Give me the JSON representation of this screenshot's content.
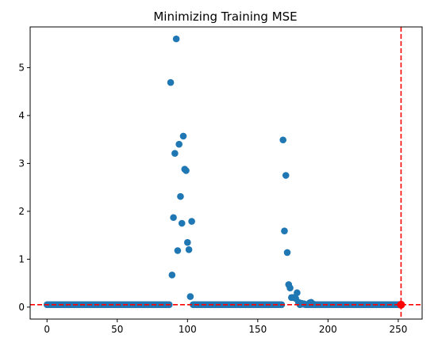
{
  "chart_data": {
    "type": "scatter",
    "title": "Minimizing Training MSE",
    "xlabel": "",
    "ylabel": "",
    "xlim": [
      -12,
      267
    ],
    "ylim": [
      -0.25,
      5.85
    ],
    "x_ticks": [
      0,
      50,
      100,
      150,
      200,
      250
    ],
    "y_ticks": [
      0,
      1,
      2,
      3,
      4,
      5
    ],
    "grid": false,
    "colors": {
      "points": "#1f77b4",
      "reference_lines": "#ff0000",
      "highlight_point": "#ff0000"
    },
    "reference_lines": {
      "horizontal_y": 0.05,
      "vertical_x": 252,
      "style": "dashed"
    },
    "highlight_point": {
      "x": 252,
      "y": 0.05
    },
    "baseline_points": {
      "y": 0.05,
      "x": [
        0,
        1,
        2,
        3,
        4,
        5,
        6,
        7,
        8,
        9,
        10,
        11,
        12,
        13,
        14,
        15,
        16,
        17,
        18,
        19,
        20,
        21,
        22,
        23,
        24,
        25,
        26,
        27,
        28,
        29,
        30,
        31,
        32,
        33,
        34,
        35,
        36,
        37,
        38,
        39,
        40,
        41,
        42,
        43,
        44,
        45,
        46,
        47,
        48,
        49,
        50,
        51,
        52,
        53,
        54,
        55,
        56,
        57,
        58,
        59,
        60,
        61,
        62,
        63,
        64,
        65,
        66,
        67,
        68,
        69,
        70,
        71,
        72,
        73,
        74,
        75,
        76,
        77,
        78,
        79,
        80,
        81,
        82,
        83,
        84,
        85,
        86,
        104,
        105,
        106,
        107,
        108,
        109,
        110,
        111,
        112,
        113,
        114,
        115,
        116,
        117,
        118,
        119,
        120,
        121,
        122,
        123,
        124,
        125,
        126,
        127,
        128,
        129,
        130,
        131,
        132,
        133,
        134,
        135,
        136,
        137,
        138,
        139,
        140,
        141,
        142,
        143,
        144,
        145,
        146,
        147,
        148,
        149,
        150,
        151,
        152,
        153,
        154,
        155,
        156,
        157,
        158,
        159,
        160,
        161,
        162,
        163,
        164,
        165,
        166,
        167,
        184,
        185,
        186,
        187,
        188,
        189,
        190,
        191,
        192,
        193,
        194,
        195,
        196,
        197,
        198,
        199,
        200,
        201,
        202,
        203,
        204,
        205,
        206,
        207,
        208,
        209,
        210,
        211,
        212,
        213,
        214,
        215,
        216,
        217,
        218,
        219,
        220,
        221,
        222,
        223,
        224,
        225,
        226,
        227,
        228,
        229,
        230,
        231,
        232,
        233,
        234,
        235,
        236,
        237,
        238,
        239,
        240,
        241,
        242,
        243,
        244,
        245,
        246,
        247,
        248,
        249,
        250,
        251
      ]
    },
    "points": [
      {
        "x": 87,
        "y": 0.05
      },
      {
        "x": 88,
        "y": 4.69
      },
      {
        "x": 89,
        "y": 0.67
      },
      {
        "x": 90,
        "y": 1.87
      },
      {
        "x": 91,
        "y": 3.21
      },
      {
        "x": 92,
        "y": 5.6
      },
      {
        "x": 93,
        "y": 1.18
      },
      {
        "x": 94,
        "y": 3.4
      },
      {
        "x": 95,
        "y": 2.31
      },
      {
        "x": 96,
        "y": 1.75
      },
      {
        "x": 97,
        "y": 3.57
      },
      {
        "x": 98,
        "y": 2.88
      },
      {
        "x": 99,
        "y": 2.85
      },
      {
        "x": 100,
        "y": 1.35
      },
      {
        "x": 101,
        "y": 1.2
      },
      {
        "x": 102,
        "y": 0.22
      },
      {
        "x": 103,
        "y": 1.79
      },
      {
        "x": 168,
        "y": 3.49
      },
      {
        "x": 169,
        "y": 1.59
      },
      {
        "x": 170,
        "y": 2.75
      },
      {
        "x": 171,
        "y": 1.14
      },
      {
        "x": 172,
        "y": 0.47
      },
      {
        "x": 173,
        "y": 0.4
      },
      {
        "x": 174,
        "y": 0.2
      },
      {
        "x": 175,
        "y": 0.2
      },
      {
        "x": 176,
        "y": 0.2
      },
      {
        "x": 177,
        "y": 0.18
      },
      {
        "x": 178,
        "y": 0.3
      },
      {
        "x": 179,
        "y": 0.1
      },
      {
        "x": 180,
        "y": 0.05
      },
      {
        "x": 181,
        "y": 0.08
      },
      {
        "x": 182,
        "y": 0.06
      },
      {
        "x": 183,
        "y": 0.07
      },
      {
        "x": 187,
        "y": 0.09
      },
      {
        "x": 188,
        "y": 0.1
      },
      {
        "x": 190,
        "y": 0.06
      }
    ]
  }
}
